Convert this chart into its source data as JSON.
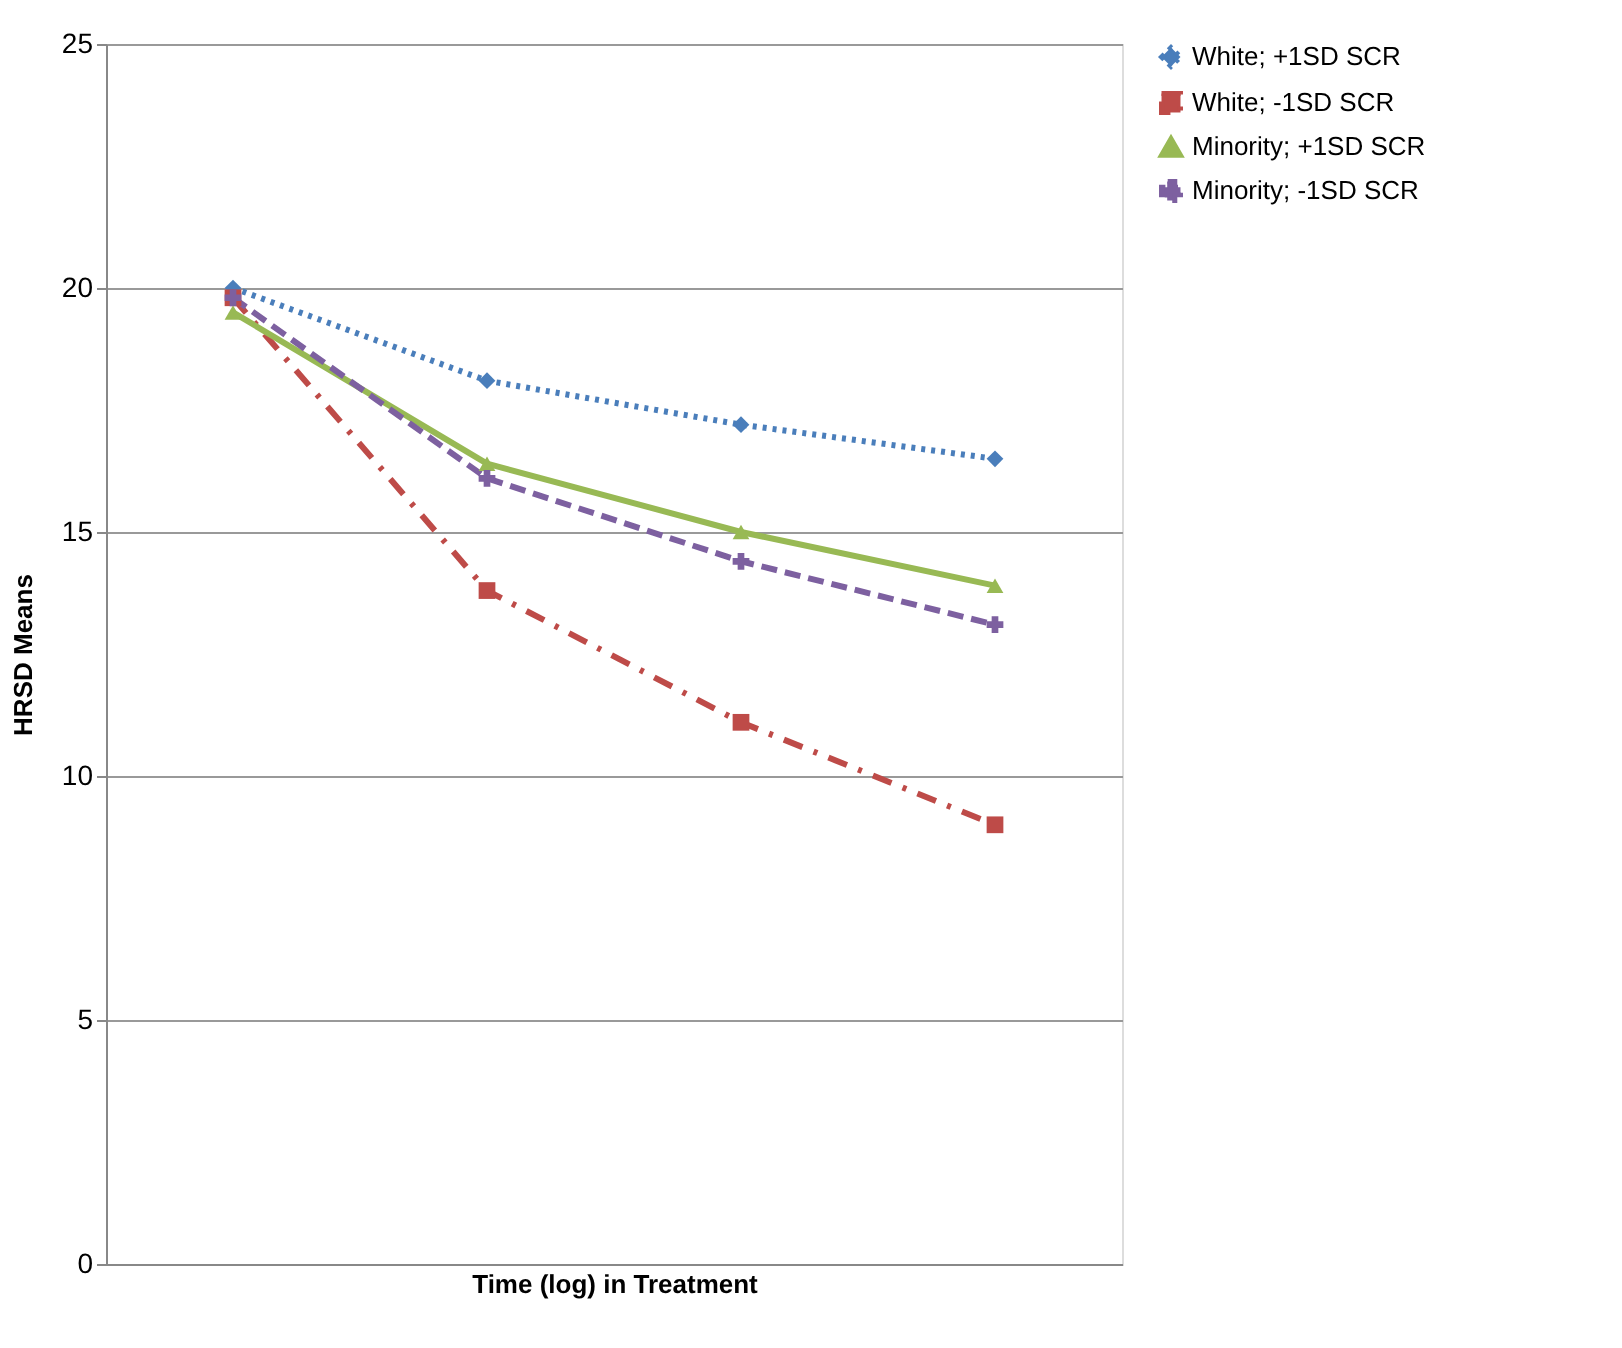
{
  "chart_data": {
    "type": "line",
    "xlabel": "Time (log) in Treatment",
    "ylabel": "HRSD Means",
    "categories": [
      null,
      null,
      null,
      null
    ],
    "tick_labels": "y",
    "ylim": [
      0,
      25
    ],
    "yticks": [
      0,
      5,
      10,
      15,
      20,
      25
    ],
    "grid": "y",
    "legend": "right",
    "series": [
      {
        "name": "White; +1SD SCR",
        "color": "#4a7ebb",
        "values": [
          20.0,
          18.1,
          17.2,
          16.5
        ],
        "marker": "diamond",
        "line_style": "dotted"
      },
      {
        "name": "White; -1SD SCR",
        "color": "#be4b48",
        "values": [
          19.8,
          13.8,
          11.1,
          9.0
        ],
        "marker": "square",
        "line_style": "dashdot"
      },
      {
        "name": "Minority; +1SD SCR",
        "color": "#98b954",
        "values": [
          19.5,
          16.4,
          15.0,
          13.9
        ],
        "marker": "triangle",
        "line_style": "solid"
      },
      {
        "name": "Minority; -1SD SCR",
        "color": "#7d60a0",
        "values": [
          19.8,
          16.1,
          14.4,
          13.1
        ],
        "marker": "cross",
        "line_style": "dashed"
      }
    ]
  }
}
